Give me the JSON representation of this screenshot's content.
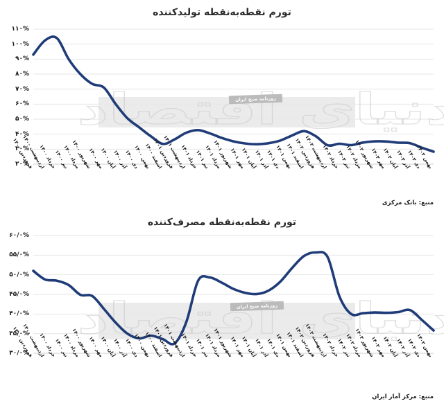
{
  "page": {
    "background": "#ffffff"
  },
  "watermark": {
    "logo_text": "دنیای اقتصاد",
    "badge_text": "روزنامه صبح ایران",
    "band_color": "#e7e7e7"
  },
  "chart_data": [
    {
      "type": "line",
      "id": "producer-inflation",
      "title": "تورم نقطه‌به‌نقطه تولیدکننده",
      "source": "منبع: بانک مرکزی",
      "line_color": "#1f3c78",
      "grid": true,
      "legend": "none",
      "xlabel": "",
      "ylabel": "",
      "ylim": [
        20,
        110
      ],
      "y_tick_values": [
        110,
        100,
        90,
        80,
        70,
        60,
        50,
        40,
        30,
        20
      ],
      "y_tick_labels": [
        "۱۱۰%",
        "۱۰۰%",
        "۹۰%",
        "۸۰%",
        "۷۰%",
        "۶۰%",
        "۵۰%",
        "۴۰%",
        "۳۰%",
        "۲۰%"
      ],
      "categories": [
        "فروردین ۱۴۰۰",
        "اردیبهشت ۱۴۰۰",
        "خرداد ۱۴۰۰",
        "تیر ۱۴۰۰",
        "مرداد ۱۴۰۰",
        "شهریور ۱۴۰۰",
        "مهر ۱۴۰۰",
        "آبان ۱۴۰۰",
        "آذر ۱۴۰۰",
        "دی ۱۴۰۰",
        "بهمن ۱۴۰۰",
        "اسفند ۱۴۰۰",
        "فروردین ۱۴۰۱",
        "اردیبهشت ۱۴۰۱",
        "خرداد ۱۴۰۱",
        "تیر ۱۴۰۱",
        "مرداد ۱۴۰۱",
        "شهریور ۱۴۰۱",
        "مهر ۱۴۰۱",
        "آبان ۱۴۰۱",
        "آذر ۱۴۰۱",
        "دی ۱۴۰۱",
        "بهمن ۱۴۰۱",
        "اسفند ۱۴۰۱",
        "فروردین ۱۴۰۲",
        "اردیبهشت ۱۴۰۲",
        "خرداد ۱۴۰۲",
        "تیر ۱۴۰۲",
        "مرداد ۱۴۰۲",
        "شهریور ۱۴۰۲",
        "مهر ۱۴۰۲",
        "آبان ۱۴۰۲",
        "آذر ۱۴۰۲",
        "دی ۱۴۰۲",
        "بهمن ۱۴۰۲"
      ],
      "values": [
        93,
        102.5,
        104,
        90,
        80,
        73.5,
        71,
        60,
        50.5,
        44.5,
        38.5,
        33.5,
        36.5,
        41,
        42.7,
        40.5,
        37.5,
        35.2,
        33.8,
        33.3,
        34,
        35.8,
        39.2,
        42,
        38.6,
        32.6,
        33.6,
        32.7,
        34.4,
        35.2,
        35.1,
        34.3,
        34,
        31,
        28.3
      ]
    },
    {
      "type": "line",
      "id": "consumer-inflation",
      "title": "تورم نقطه‌به‌نقطه مصرف‌کننده",
      "source": "منبع: مرکز آمار ایران",
      "line_color": "#1f3c78",
      "grid": true,
      "legend": "none",
      "xlabel": "",
      "ylabel": "",
      "ylim": [
        30,
        60
      ],
      "y_tick_values": [
        60,
        55,
        50,
        45,
        40,
        35,
        30
      ],
      "y_tick_labels": [
        "۶۰/۰%",
        "۵۵/۰%",
        "۵۰/۰%",
        "۴۵/۰%",
        "۴۰/۰%",
        "۳۵/۰%",
        "۳۰/۰%"
      ],
      "categories": [
        "فروردین ۱۴۰۰",
        "اردیبهشت ۱۴۰۰",
        "خرداد ۱۴۰۰",
        "تیر ۱۴۰۰",
        "مرداد ۱۴۰۰",
        "شهریور ۱۴۰۰",
        "مهر ۱۴۰۰",
        "آبان ۱۴۰۰",
        "آذر ۱۴۰۰",
        "دی ۱۴۰۰",
        "بهمن ۱۴۰۰",
        "اسفند ۱۴۰۰",
        "فروردین ۱۴۰۱",
        "اردیبهشت ۱۴۰۱",
        "خرداد ۱۴۰۱",
        "تیر ۱۴۰۱",
        "مرداد ۱۴۰۱",
        "شهریور ۱۴۰۱",
        "مهر ۱۴۰۱",
        "آبان ۱۴۰۱",
        "آذر ۱۴۰۱",
        "دی ۱۴۰۱",
        "بهمن ۱۴۰۱",
        "اسفند ۱۴۰۱",
        "فروردین ۱۴۰۲",
        "اردیبهشت ۱۴۰۲",
        "خرداد ۱۴۰۲",
        "تیر ۱۴۰۲",
        "مرداد ۱۴۰۲",
        "شهریور ۱۴۰۲",
        "مهر ۱۴۰۲",
        "آبان ۱۴۰۲",
        "آذر ۱۴۰۲",
        "دی ۱۴۰۲",
        "بهمن ۱۴۰۲"
      ],
      "values": [
        51,
        48.8,
        48.5,
        47.4,
        44.9,
        44.6,
        41.3,
        37.8,
        35,
        33.8,
        34.5,
        33.6,
        32.5,
        38,
        48.5,
        49.3,
        48,
        46.4,
        45.4,
        45.1,
        46,
        48.3,
        51.8,
        54.8,
        55.7,
        54.5,
        44.5,
        40,
        40.2,
        40.4,
        40.3,
        40.5,
        41,
        38.5,
        35.8
      ]
    }
  ]
}
